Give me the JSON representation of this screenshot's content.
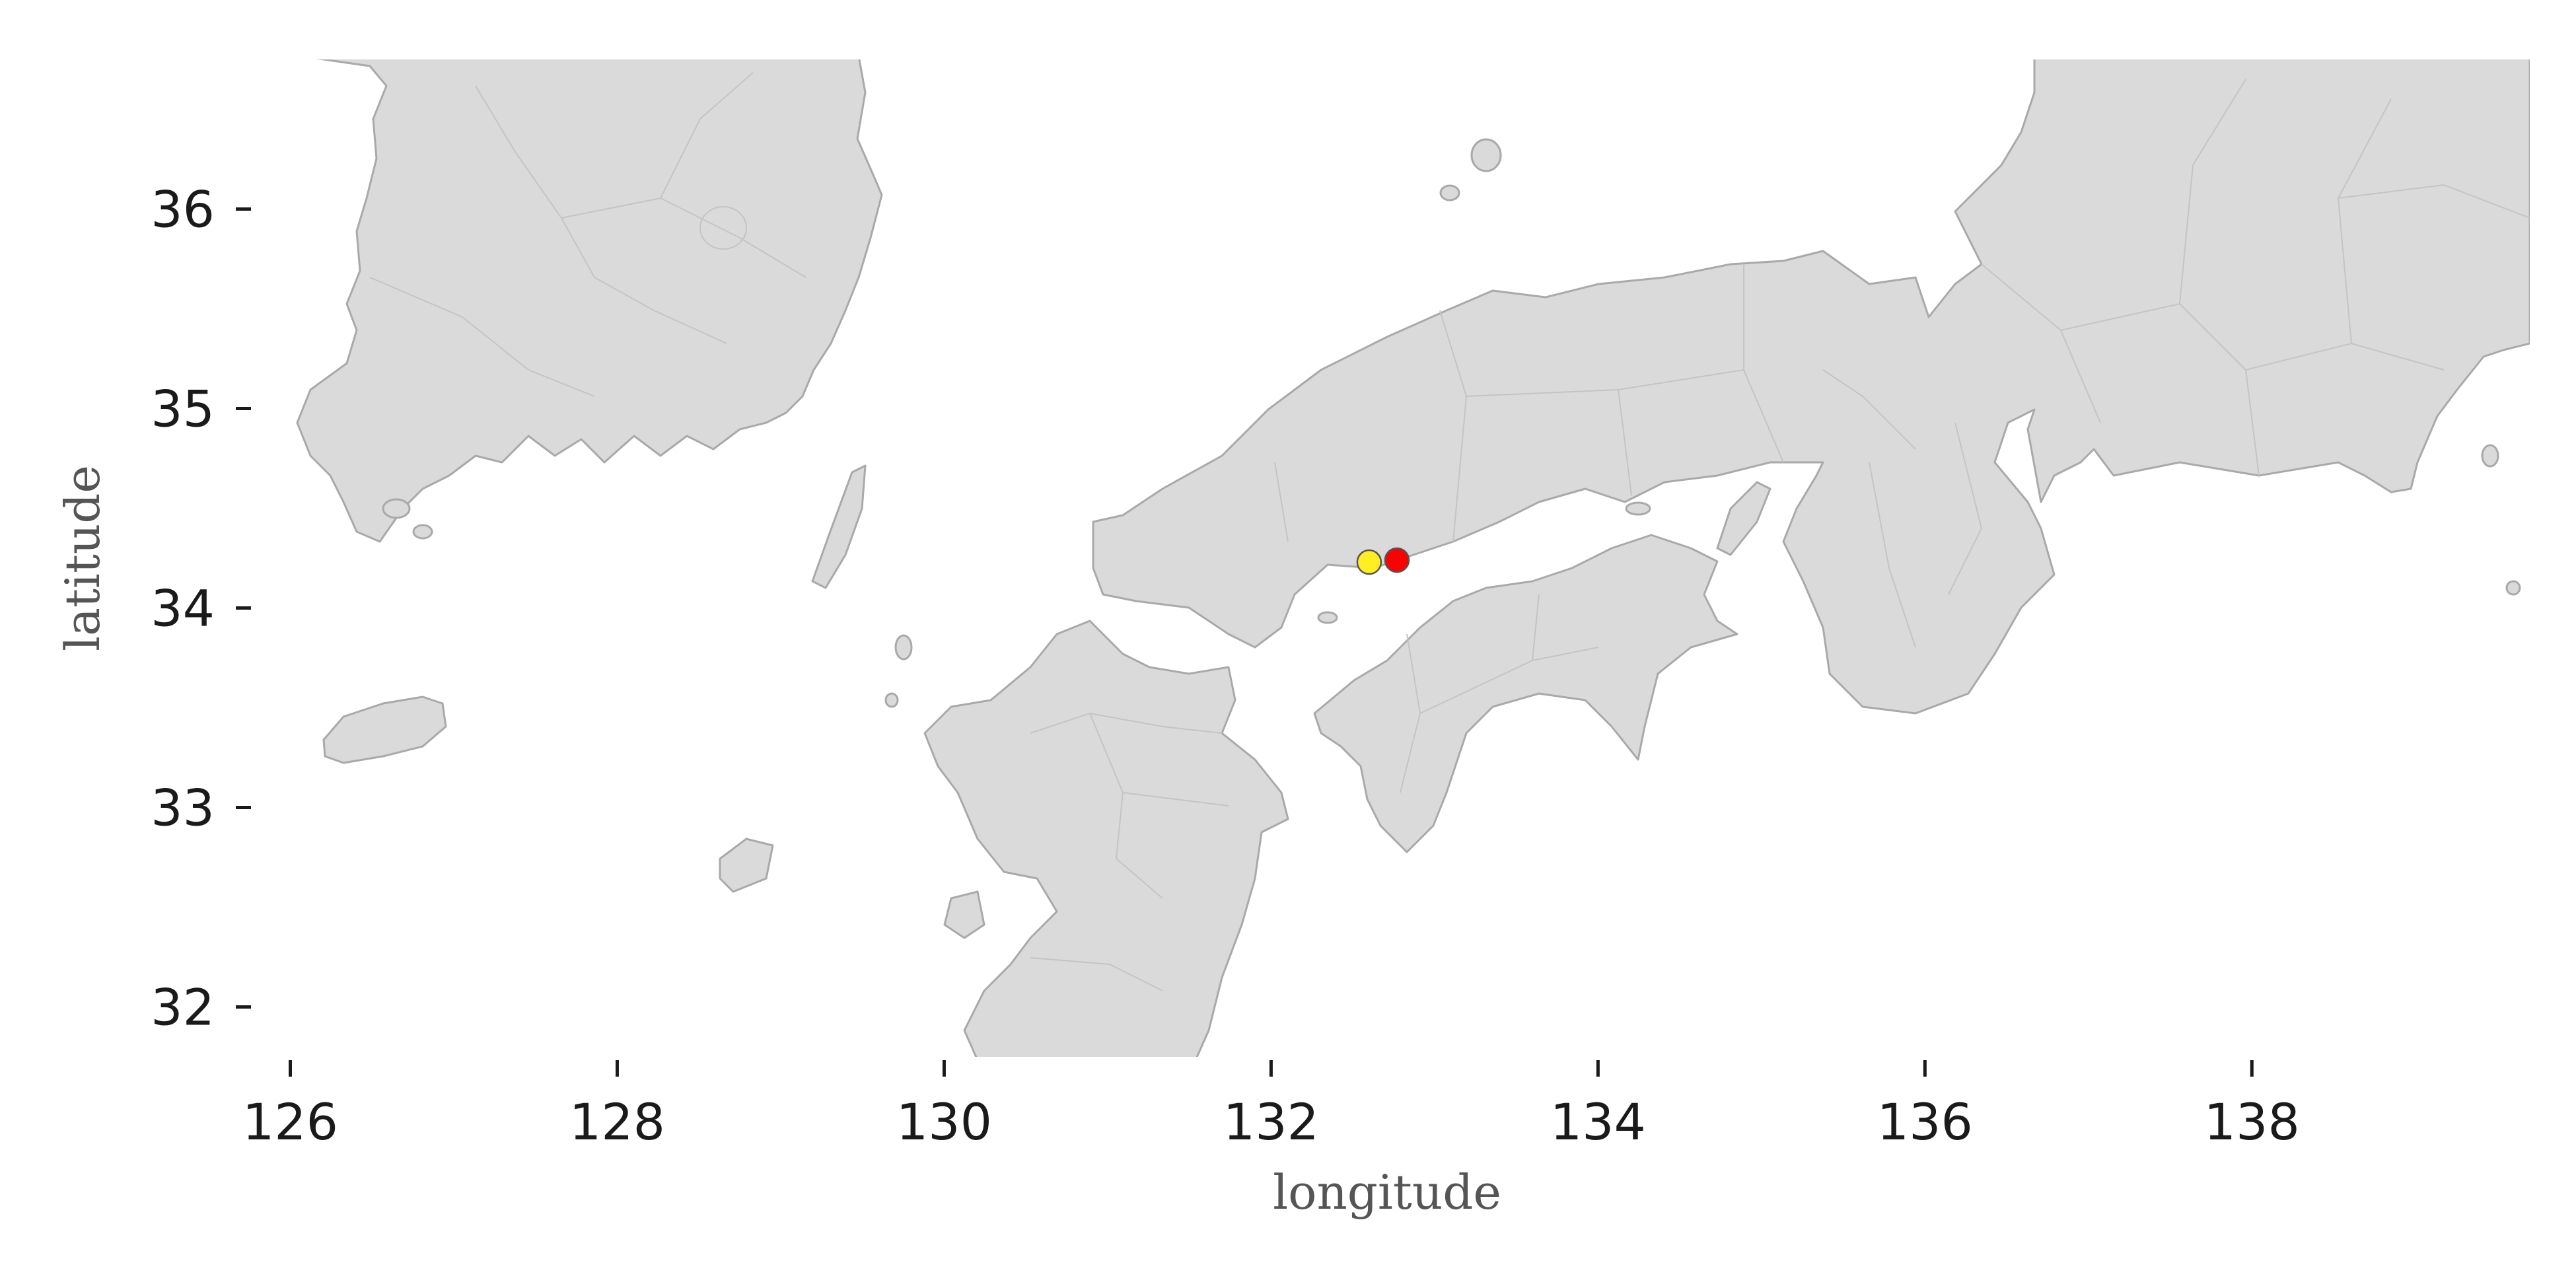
{
  "chart_data": {
    "type": "scatter",
    "title": "",
    "xlabel": "longitude",
    "ylabel": "latitude",
    "xlim": [
      125.8,
      139.7
    ],
    "ylim": [
      31.75,
      36.75
    ],
    "grid": false,
    "xticks": [
      126,
      128,
      130,
      132,
      134,
      136,
      138
    ],
    "yticks": [
      32,
      33,
      34,
      35,
      36
    ],
    "basemap": "coastlines and administrative borders of southern Korea and western Japan",
    "land_color": "#dadada",
    "coastline_color": "#a9a9a9",
    "series": [
      {
        "color": "#ffee22",
        "points": [
          {
            "x": 132.6,
            "y": 34.23
          }
        ]
      },
      {
        "color": "#ff0000",
        "points": [
          {
            "x": 132.77,
            "y": 34.24
          }
        ]
      }
    ]
  }
}
